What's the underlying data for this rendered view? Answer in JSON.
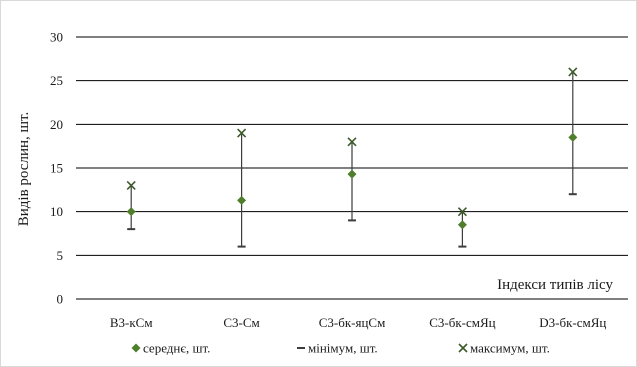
{
  "chart_data": {
    "type": "scatter",
    "ylabel": "Видів рослин, шт.",
    "xlabel": "Індекси типів лісу",
    "ylim": [
      0,
      30
    ],
    "yticks": [
      0,
      5,
      10,
      15,
      20,
      25,
      30
    ],
    "grid": true,
    "legend_position": "bottom",
    "categories": [
      "B3-кСм",
      "C3-См",
      "C3-бк-яцСм",
      "C3-бк-смЯц",
      "D3-бк-смЯц"
    ],
    "series": [
      {
        "name": "середнє, шт.",
        "marker": "diamond",
        "color": "#4f7f2c",
        "values": [
          10,
          11.3,
          14.3,
          8.5,
          18.5
        ]
      },
      {
        "name": "мінімум, шт.",
        "marker": "dash",
        "color": "#3d3d3d",
        "values": [
          8,
          6,
          9,
          6,
          12
        ]
      },
      {
        "name": "максимум, шт.",
        "marker": "x",
        "color": "#3d5a2a",
        "values": [
          13,
          19,
          18,
          10,
          26
        ]
      }
    ]
  }
}
